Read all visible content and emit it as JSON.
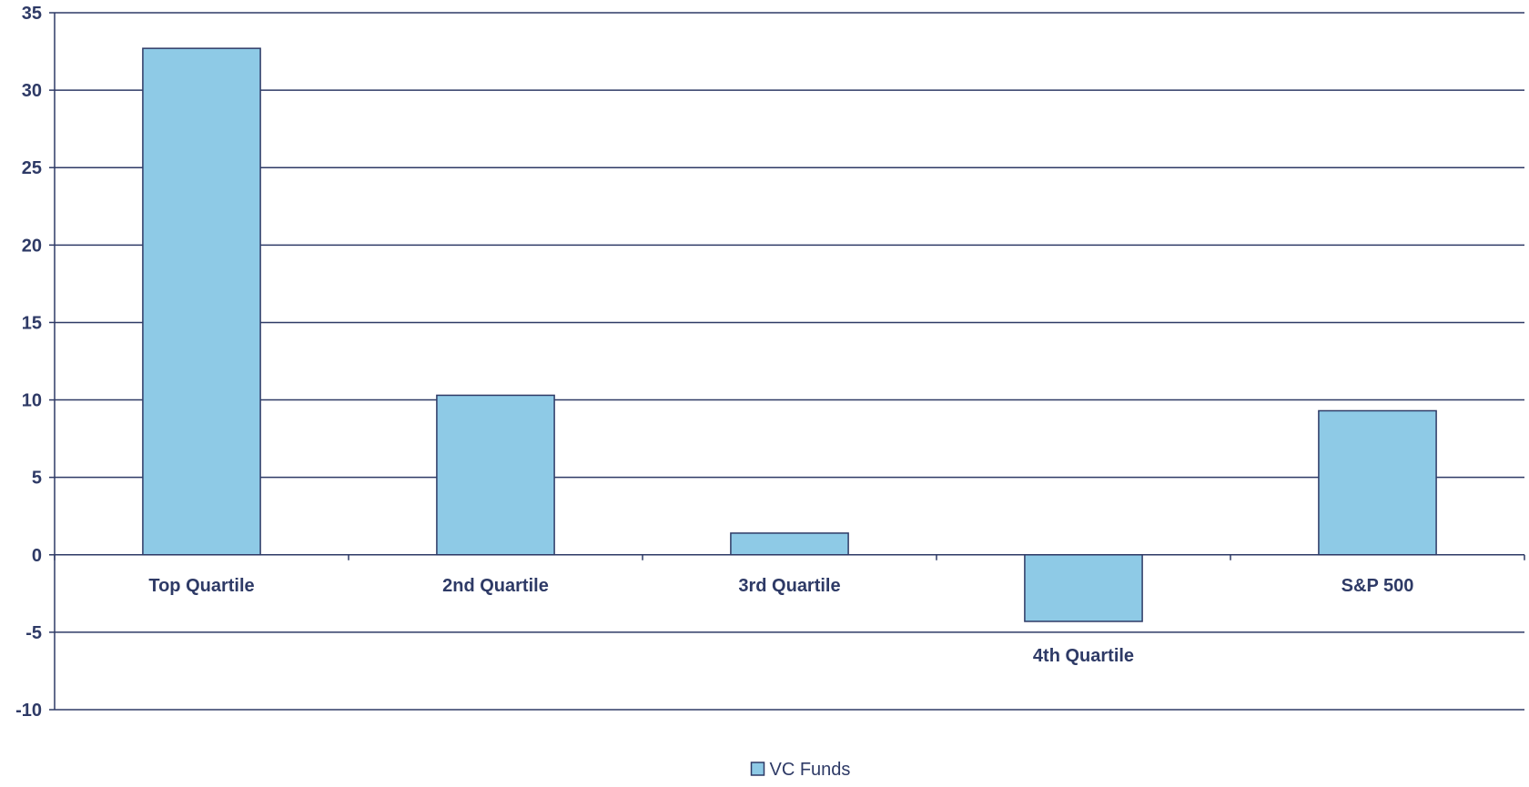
{
  "chart_data": {
    "type": "bar",
    "title": "",
    "xlabel": "",
    "ylabel": "",
    "categories": [
      "Top Quartile",
      "2nd Quartile",
      "3rd Quartile",
      "4th Quartile",
      "S&P 500"
    ],
    "series": [
      {
        "name": "VC Funds",
        "values": [
          32.7,
          10.3,
          1.4,
          -4.3,
          9.3
        ]
      }
    ],
    "ylim": [
      -10,
      35
    ],
    "yticks": [
      "35",
      "30",
      "25",
      "20",
      "15",
      "10",
      "5",
      "0",
      "-5",
      "-10"
    ],
    "grid": true,
    "legend": "bottom-center",
    "colors": {
      "bar_fill": "#8ecae6",
      "bar_stroke": "#2e3a66",
      "gridline": "#2e3a66",
      "axis": "#2e3a66",
      "text": "#2e3a66"
    }
  }
}
